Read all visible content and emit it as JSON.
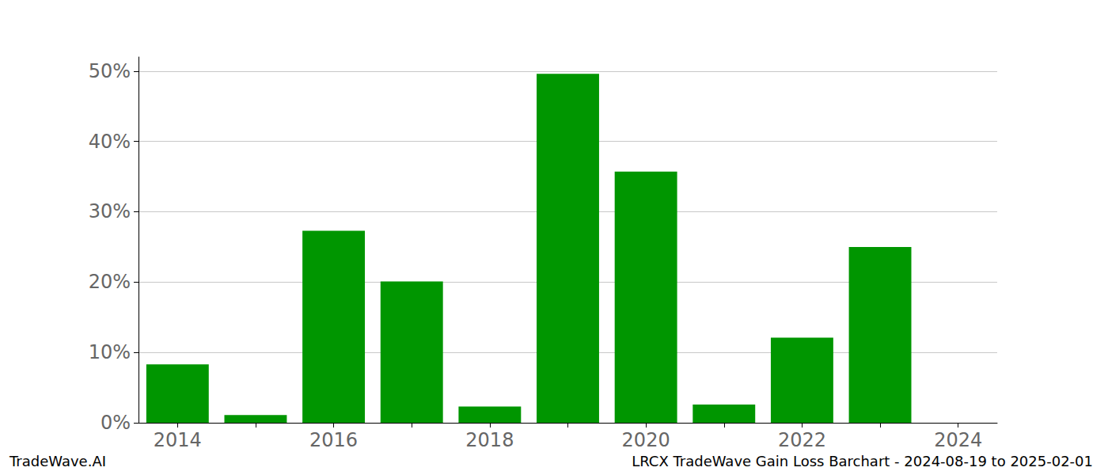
{
  "chart_data": {
    "type": "bar",
    "title": "LRCX TradeWave Gain Loss Barchart - 2024-08-19 to 2025-02-01",
    "annotations": [
      "TradeWave.AI"
    ],
    "categories": [
      "2014",
      null,
      "2016",
      null,
      "2018",
      null,
      "2020",
      null,
      "2022",
      null,
      "2024"
    ],
    "values": [
      8.3,
      1.1,
      27.3,
      20.1,
      2.3,
      49.6,
      35.7,
      2.6,
      12.1,
      25.0,
      null
    ],
    "color": "#009600",
    "ylim": [
      0,
      52
    ],
    "yticks": [
      {
        "value": 0,
        "label": "0%"
      },
      {
        "value": 10,
        "label": "10%"
      },
      {
        "value": 20,
        "label": "20%"
      },
      {
        "value": 30,
        "label": "30%"
      },
      {
        "value": 40,
        "label": "40%"
      },
      {
        "value": 50,
        "label": "50%"
      }
    ],
    "grid": true
  }
}
